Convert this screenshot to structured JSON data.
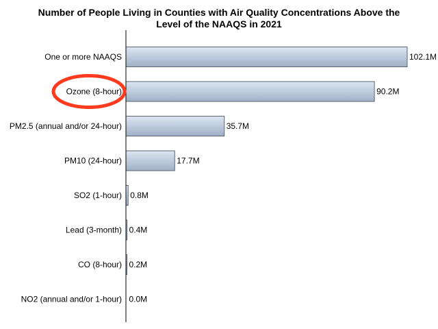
{
  "chart_data": {
    "type": "bar",
    "orientation": "horizontal",
    "title_lines": [
      "Number of People Living in Counties with Air Quality Concentrations Above the",
      "Level of the NAAQS in 2021"
    ],
    "categories": [
      "One or more NAAQS",
      "Ozone (8-hour)",
      "PM2.5 (annual and/or 24-hour)",
      "PM10 (24-hour)",
      "SO2 (1-hour)",
      "Lead (3-month)",
      "CO (8-hour)",
      "NO2 (annual and/or 1-hour)"
    ],
    "values": [
      102.1,
      90.2,
      35.7,
      17.7,
      0.8,
      0.4,
      0.2,
      0.0
    ],
    "value_labels": [
      "102.1M",
      "90.2M",
      "35.7M",
      "17.7M",
      "0.8M",
      "0.4M",
      "0.2M",
      "0.0M"
    ],
    "xlim": [
      0,
      102.1
    ],
    "grid": false,
    "highlighted_category": "Ozone (8-hour)",
    "colors": {
      "bar_fill_light": "#dde6f2",
      "bar_fill_dark": "#9fb0c6",
      "bar_stroke": "#5a6572",
      "highlight_ring": "#ff3b1f",
      "axis": "#000000"
    }
  }
}
